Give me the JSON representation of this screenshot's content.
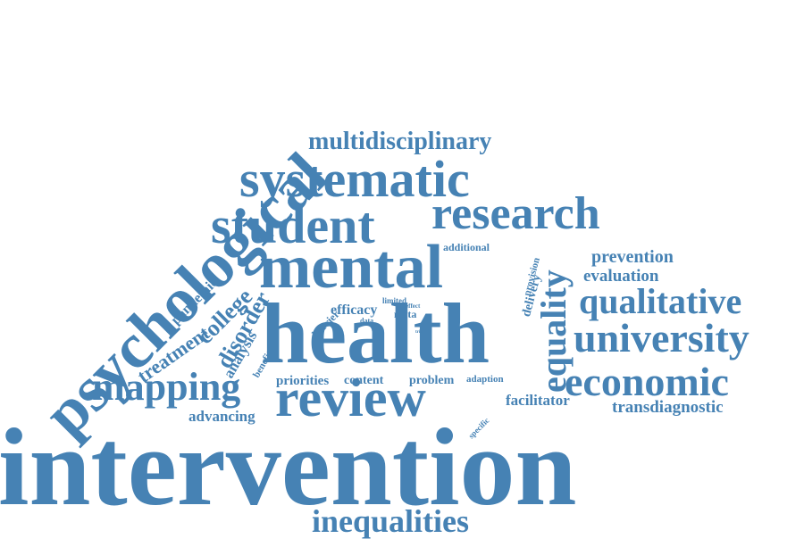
{
  "theme": {
    "word_color": "#4682b4",
    "background": "#ffffff"
  },
  "words": {
    "intervention": "intervention",
    "health": "health",
    "mental": "mental",
    "psychological": "psychological",
    "systematic": "systematic",
    "student": "student",
    "research": "research",
    "review": "review",
    "university": "university",
    "economic": "economic",
    "qualitative": "qualitative",
    "mapping": "mapping",
    "inequalities": "inequalities",
    "multidisciplinary": "multidisciplinary",
    "equality": "equality",
    "prevention": "prevention",
    "evaluation": "evaluation",
    "transdiagnostic": "transdiagnostic",
    "facilitator": "facilitator",
    "advancing": "advancing",
    "priorities": "priorities",
    "content": "content",
    "problem": "problem",
    "adaption": "adaption",
    "treatment": "treatment",
    "disorder": "disorder",
    "college": "college",
    "pandemic": "pandemic",
    "analysis": "analysis",
    "benefit": "benefit",
    "barrier": "barrier",
    "efficacy": "efficacy",
    "meta": "meta",
    "limited": "limited",
    "effect": "effect",
    "data": "data",
    "risk": "risk",
    "trial": "trial",
    "additional": "additional",
    "provision": "provision",
    "delivery": "delivery",
    "specific": "specific"
  }
}
